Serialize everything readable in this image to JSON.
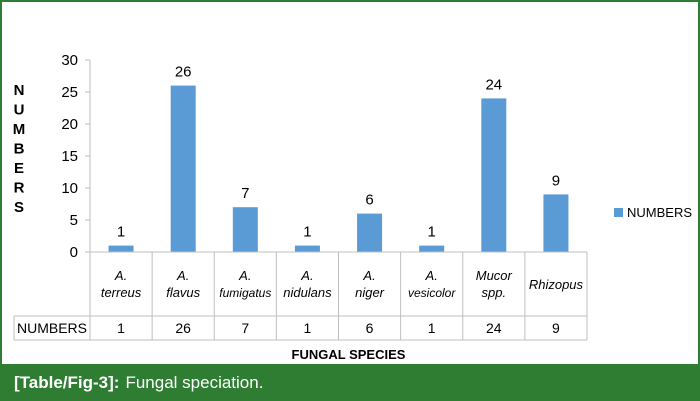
{
  "chart_data": {
    "type": "bar",
    "categories": [
      [
        "A.",
        "terreus"
      ],
      [
        "A.",
        "flavus"
      ],
      [
        "A.",
        "fumigatus"
      ],
      [
        "A.",
        "nidulans"
      ],
      [
        "A.",
        "niger"
      ],
      [
        "A.",
        "vesicolor"
      ],
      [
        "Mucor",
        "spp."
      ],
      [
        "Rhizopus"
      ]
    ],
    "series": [
      {
        "name": "NUMBERS",
        "values": [
          1,
          26,
          7,
          1,
          6,
          1,
          24,
          9
        ],
        "color": "#5b9bd5"
      }
    ],
    "ylabel": "NUMBERS",
    "xlabel": "FUNGAL SPECIES",
    "ylim": [
      0,
      30
    ],
    "yticks": [
      0,
      5,
      10,
      15,
      20,
      25,
      30
    ],
    "grid": false,
    "legend": "right",
    "data_labels": true,
    "data_table": true,
    "table_row_label": "NUMBERS"
  },
  "caption": {
    "ref": "[Table/Fig-3]:",
    "text": "Fungal speciation."
  },
  "colors": {
    "frame": "#2e7d32",
    "caption_bar": "#2e7d32",
    "bar": "#5b9bd5",
    "axis": "#bfbfbf"
  }
}
